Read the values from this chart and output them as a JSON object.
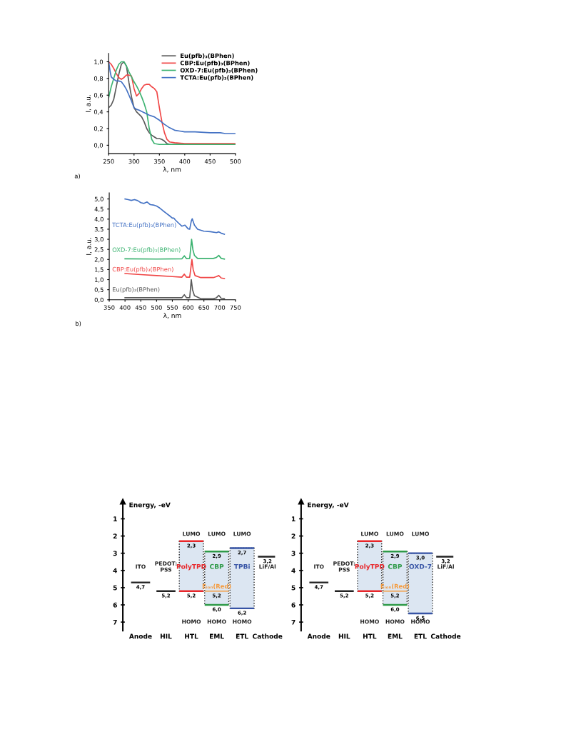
{
  "chart_data": [
    {
      "type": "line",
      "xlabel": "λ, nm",
      "ylabel": "I, a.u.",
      "legend": "top right",
      "annotations": [
        "a)"
      ],
      "xlim": [
        250,
        500
      ],
      "xticks": [
        250,
        300,
        350,
        400,
        450,
        500
      ],
      "ylim": [
        -0.1,
        1.1
      ],
      "yticks": [
        {
          "value": 0,
          "label": "0,0"
        },
        {
          "value": 0.2,
          "label": "0,2"
        },
        {
          "value": 0.4,
          "label": "0,4"
        },
        {
          "value": 0.6,
          "label": "0,6"
        },
        {
          "value": 0.8,
          "label": "0,8"
        },
        {
          "value": 1.0,
          "label": "1,0"
        }
      ],
      "series": [
        {
          "name": "Eu(pfb)₃(BPhen)",
          "color": "#5a5a5a",
          "x": [
            250,
            255,
            260,
            265,
            270,
            275,
            280,
            285,
            290,
            295,
            300,
            305,
            310,
            315,
            320,
            325,
            330,
            335,
            340,
            345,
            350,
            355,
            360,
            365,
            370,
            380,
            400,
            500
          ],
          "values": [
            0.45,
            0.48,
            0.55,
            0.7,
            0.85,
            0.97,
            1.0,
            0.95,
            0.75,
            0.58,
            0.45,
            0.4,
            0.37,
            0.34,
            0.28,
            0.2,
            0.15,
            0.12,
            0.1,
            0.08,
            0.08,
            0.07,
            0.05,
            0.02,
            0.01,
            0.01,
            0.01,
            0.01
          ]
        },
        {
          "name": "CBP:Eu(pfb)₃(BPhen)",
          "color": "#f04646",
          "x": [
            250,
            255,
            260,
            265,
            270,
            275,
            280,
            285,
            290,
            295,
            300,
            305,
            310,
            315,
            320,
            325,
            330,
            335,
            340,
            345,
            350,
            355,
            360,
            365,
            370,
            380,
            400,
            450,
            500
          ],
          "values": [
            1.0,
            0.97,
            0.92,
            0.86,
            0.81,
            0.79,
            0.81,
            0.84,
            0.84,
            0.83,
            0.68,
            0.59,
            0.62,
            0.68,
            0.72,
            0.73,
            0.73,
            0.7,
            0.68,
            0.64,
            0.45,
            0.28,
            0.15,
            0.07,
            0.04,
            0.03,
            0.02,
            0.02,
            0.02
          ]
        },
        {
          "name": "OXD-7:Eu(pfb)₃(BPhen)",
          "color": "#3cb371",
          "x": [
            250,
            255,
            260,
            265,
            270,
            275,
            280,
            285,
            290,
            295,
            300,
            305,
            310,
            315,
            320,
            325,
            330,
            335,
            340,
            350,
            400,
            500
          ],
          "values": [
            0.57,
            0.7,
            0.8,
            0.9,
            0.97,
            1.0,
            1.0,
            0.95,
            0.88,
            0.82,
            0.76,
            0.71,
            0.65,
            0.58,
            0.5,
            0.4,
            0.2,
            0.07,
            0.02,
            0.01,
            0.01,
            0.01
          ]
        },
        {
          "name": "TCTA:Eu(pfb)₃(BPhen)",
          "color": "#4472c4",
          "x": [
            250,
            253,
            255,
            260,
            265,
            270,
            275,
            280,
            285,
            290,
            295,
            300,
            305,
            310,
            320,
            330,
            340,
            345,
            350,
            360,
            370,
            380,
            390,
            400,
            420,
            450,
            470,
            480,
            500
          ],
          "values": [
            1.0,
            0.88,
            0.82,
            0.79,
            0.77,
            0.77,
            0.76,
            0.72,
            0.67,
            0.6,
            0.53,
            0.45,
            0.43,
            0.42,
            0.39,
            0.36,
            0.34,
            0.32,
            0.3,
            0.25,
            0.21,
            0.18,
            0.17,
            0.16,
            0.16,
            0.15,
            0.15,
            0.14,
            0.14
          ]
        }
      ]
    },
    {
      "type": "line",
      "xlabel": "λ, nm",
      "ylabel": "I, a.u.",
      "annotations": [
        "b)"
      ],
      "xlim": [
        350,
        750
      ],
      "xticks": [
        350,
        400,
        450,
        500,
        550,
        600,
        650,
        700,
        750
      ],
      "ylim": [
        0,
        5.3
      ],
      "yticks": [
        {
          "value": 0,
          "label": "0,0"
        },
        {
          "value": 0.5,
          "label": "0,5"
        },
        {
          "value": 1.0,
          "label": "1,0"
        },
        {
          "value": 1.5,
          "label": "1,5"
        },
        {
          "value": 2.0,
          "label": "2,0"
        },
        {
          "value": 2.5,
          "label": "2,5"
        },
        {
          "value": 3.0,
          "label": "3,0"
        },
        {
          "value": 3.5,
          "label": "3,5"
        },
        {
          "value": 4.0,
          "label": "4,0"
        },
        {
          "value": 4.5,
          "label": "4,5"
        },
        {
          "value": 5.0,
          "label": "5,0"
        }
      ],
      "series": [
        {
          "name": "TCTA:Eu(pfb)₃(BPhen)",
          "color": "#4472c4",
          "x": [
            400,
            410,
            420,
            430,
            440,
            450,
            460,
            470,
            480,
            490,
            500,
            510,
            520,
            530,
            540,
            550,
            555,
            560,
            570,
            580,
            590,
            600,
            605,
            610,
            613,
            620,
            630,
            650,
            670,
            690,
            697,
            705,
            715
          ],
          "values": [
            5.0,
            4.97,
            4.93,
            4.97,
            4.92,
            4.82,
            4.78,
            4.85,
            4.72,
            4.7,
            4.65,
            4.55,
            4.42,
            4.3,
            4.18,
            4.05,
            4.05,
            3.95,
            3.8,
            3.65,
            3.7,
            3.52,
            3.5,
            3.9,
            4.02,
            3.7,
            3.5,
            3.4,
            3.38,
            3.33,
            3.37,
            3.3,
            3.25
          ]
        },
        {
          "name": "OXD-7:Eu(pfb)₃(BPhen)",
          "color": "#3cb371",
          "x": [
            400,
            500,
            580,
            588,
            595,
            605,
            611,
            615,
            620,
            630,
            680,
            690,
            697,
            705,
            715
          ],
          "values": [
            2.03,
            2.02,
            2.03,
            2.18,
            2.04,
            2.05,
            3.0,
            2.5,
            2.2,
            2.05,
            2.05,
            2.1,
            2.2,
            2.05,
            2.02
          ]
        },
        {
          "name": "CBP:Eu(pfb)₃(BPhen)",
          "color": "#f04646",
          "x": [
            400,
            450,
            500,
            550,
            580,
            588,
            595,
            605,
            612,
            616,
            622,
            640,
            680,
            690,
            697,
            705,
            715
          ],
          "values": [
            1.3,
            1.25,
            1.2,
            1.15,
            1.12,
            1.27,
            1.12,
            1.12,
            2.0,
            1.5,
            1.2,
            1.1,
            1.1,
            1.15,
            1.2,
            1.08,
            1.05
          ]
        },
        {
          "name": "Eu(pfb)₃(BPhen)",
          "color": "#5a5a5a",
          "x": [
            400,
            500,
            580,
            588,
            595,
            605,
            610,
            614,
            620,
            640,
            680,
            690,
            697,
            705,
            715
          ],
          "values": [
            0.1,
            0.1,
            0.1,
            0.25,
            0.1,
            0.1,
            1.0,
            0.5,
            0.2,
            0.05,
            0.05,
            0.1,
            0.22,
            0.07,
            0.05
          ]
        }
      ]
    },
    {
      "type": "bar",
      "ylabel": "Energy, -eV",
      "categories": [
        "Anode",
        "HIL",
        "HTL",
        "EML",
        "ETL",
        "Cathode"
      ],
      "ylim": [
        7.5,
        0
      ],
      "yticks": [
        1,
        2,
        3,
        4,
        5,
        6,
        7
      ],
      "series": [
        {
          "type": "bar",
          "color": "#dce6f2",
          "base": [
            null,
            null,
            2.3,
            2.9,
            2.7,
            null
          ],
          "values": [
            null,
            null,
            2.9,
            3.1,
            3.5,
            null
          ]
        },
        {
          "type": "bar",
          "color": "#222222",
          "base": [
            4.7,
            5.2,
            null,
            null,
            null,
            3.2
          ],
          "values": [
            0,
            0,
            null,
            null,
            null,
            0
          ]
        },
        {
          "type": "bar",
          "color": "#e8262a",
          "base": [
            null,
            null,
            2.3,
            null,
            null,
            null
          ],
          "values": [
            null,
            null,
            0,
            null,
            null,
            null
          ]
        },
        {
          "type": "bar",
          "color": "#e8262a",
          "base": [
            null,
            null,
            5.2,
            null,
            null,
            null
          ],
          "values": [
            null,
            null,
            0,
            null,
            null,
            null
          ]
        },
        {
          "type": "bar",
          "color": "#2e9a48",
          "base": [
            null,
            null,
            null,
            2.9,
            null,
            null
          ],
          "values": [
            null,
            null,
            null,
            0,
            null,
            null
          ]
        },
        {
          "type": "bar",
          "color": "#2e9a48",
          "base": [
            null,
            null,
            null,
            6.0,
            null,
            null
          ],
          "values": [
            null,
            null,
            null,
            0,
            null,
            null
          ]
        },
        {
          "type": "bar",
          "color": "#3653a5",
          "base": [
            null,
            null,
            null,
            null,
            2.7,
            null
          ],
          "values": [
            null,
            null,
            null,
            null,
            0,
            null
          ]
        },
        {
          "type": "bar",
          "color": "#3653a5",
          "base": [
            null,
            null,
            null,
            null,
            6.2,
            null
          ],
          "values": [
            null,
            null,
            null,
            null,
            0,
            null
          ]
        },
        {
          "type": "bar",
          "name": "Eᵢₒₙ(Red)",
          "color": "#f59a3c",
          "line_style": "dashed",
          "base": [
            null,
            null,
            null,
            5.2,
            null,
            null
          ],
          "values": [
            null,
            null,
            null,
            0,
            null,
            null
          ]
        }
      ],
      "annotations": [
        "LUMO",
        "LUMO",
        "LUMO",
        "HOMO",
        "HOMO",
        "HOMO",
        "ITO",
        "PEDOT:\nPSS",
        "PolyTPD",
        "CBP",
        "TPBi",
        "LiF/Al",
        {
          "text": "4,7",
          "x": "Anode",
          "y": 4.7
        },
        {
          "text": "5,2",
          "x": "HIL",
          "y": 5.2
        },
        {
          "text": "2,3",
          "x": "HTL",
          "y": 2.3
        },
        {
          "text": "5,2",
          "x": "HTL",
          "y": 5.2
        },
        {
          "text": "2,9",
          "x": "EML",
          "y": 2.9
        },
        {
          "text": "5,2",
          "x": "EML",
          "y": 5.2
        },
        {
          "text": "6,0",
          "x": "EML",
          "y": 6.0
        },
        {
          "text": "2,7",
          "x": "ETL",
          "y": 2.7
        },
        {
          "text": "6,2",
          "x": "ETL",
          "y": 6.2
        },
        {
          "text": "3,2",
          "x": "Cathode",
          "y": 3.2
        }
      ]
    },
    {
      "type": "bar",
      "ylabel": "Energy, -eV",
      "categories": [
        "Anode",
        "HIL",
        "HTL",
        "EML",
        "ETL",
        "Cathode"
      ],
      "ylim": [
        7.5,
        0
      ],
      "yticks": [
        1,
        2,
        3,
        4,
        5,
        6,
        7
      ],
      "series": [
        {
          "type": "bar",
          "color": "#dce6f2",
          "base": [
            null,
            null,
            2.3,
            2.9,
            3.0,
            null
          ],
          "values": [
            null,
            null,
            2.9,
            3.1,
            3.5,
            null
          ]
        },
        {
          "type": "bar",
          "color": "#222222",
          "base": [
            4.7,
            5.2,
            null,
            null,
            null,
            3.2
          ],
          "values": [
            0,
            0,
            null,
            null,
            null,
            0
          ]
        },
        {
          "type": "bar",
          "color": "#e8262a",
          "base": [
            null,
            null,
            2.3,
            null,
            null,
            null
          ],
          "values": [
            null,
            null,
            0,
            null,
            null,
            null
          ]
        },
        {
          "type": "bar",
          "color": "#e8262a",
          "base": [
            null,
            null,
            5.2,
            null,
            null,
            null
          ],
          "values": [
            null,
            null,
            0,
            null,
            null,
            null
          ]
        },
        {
          "type": "bar",
          "color": "#2e9a48",
          "base": [
            null,
            null,
            null,
            2.9,
            null,
            null
          ],
          "values": [
            null,
            null,
            null,
            0,
            null,
            null
          ]
        },
        {
          "type": "bar",
          "color": "#2e9a48",
          "base": [
            null,
            null,
            null,
            6.0,
            null,
            null
          ],
          "values": [
            null,
            null,
            null,
            0,
            null,
            null
          ]
        },
        {
          "type": "bar",
          "color": "#3653a5",
          "base": [
            null,
            null,
            null,
            null,
            3.0,
            null
          ],
          "values": [
            null,
            null,
            null,
            null,
            0,
            null
          ]
        },
        {
          "type": "bar",
          "color": "#3653a5",
          "base": [
            null,
            null,
            null,
            null,
            6.5,
            null
          ],
          "values": [
            null,
            null,
            null,
            null,
            0,
            null
          ]
        },
        {
          "type": "bar",
          "name": "Eᵢₒₙ(Red)",
          "color": "#f59a3c",
          "line_style": "dashed",
          "base": [
            null,
            null,
            null,
            5.2,
            null,
            null
          ],
          "values": [
            null,
            null,
            null,
            0,
            null,
            null
          ]
        }
      ],
      "annotations": [
        "LUMO",
        "LUMO",
        "LUMO",
        "HOMO",
        "HOMO",
        "HOMO",
        "ITO",
        "PEDOT:\nPSS",
        "PolyTPD",
        "CBP",
        "OXD-7",
        "LiF/Al",
        {
          "text": "4,7",
          "x": "Anode",
          "y": 4.7
        },
        {
          "text": "5,2",
          "x": "HIL",
          "y": 5.2
        },
        {
          "text": "2,3",
          "x": "HTL",
          "y": 2.3
        },
        {
          "text": "5,2",
          "x": "HTL",
          "y": 5.2
        },
        {
          "text": "2,9",
          "x": "EML",
          "y": 2.9
        },
        {
          "text": "5,2",
          "x": "EML",
          "y": 5.2
        },
        {
          "text": "6,0",
          "x": "EML",
          "y": 6.0
        },
        {
          "text": "3,0",
          "x": "ETL",
          "y": 3.0
        },
        {
          "text": "6,5",
          "x": "ETL",
          "y": 6.5
        },
        {
          "text": "3,2",
          "x": "Cathode",
          "y": 3.2
        }
      ]
    }
  ]
}
